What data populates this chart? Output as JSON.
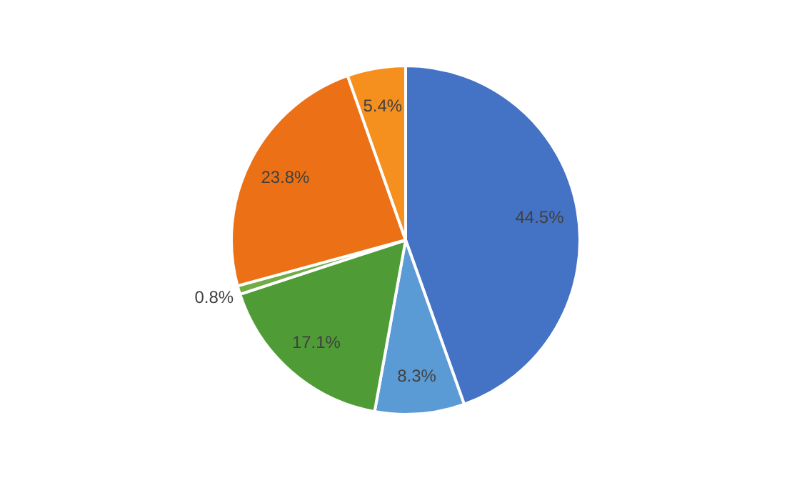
{
  "chart_data": {
    "type": "pie",
    "categories": [
      null,
      null,
      null,
      null,
      null,
      null
    ],
    "values": [
      44.5,
      8.3,
      17.1,
      0.8,
      23.8,
      5.4
    ],
    "colors": [
      "#4472c4",
      "#5b9bd5",
      "#4f9c37",
      "#70ad47",
      "#ec7116",
      "#f5901e"
    ],
    "value_labels": [
      "44.5%",
      "8.3%",
      "17.1%",
      "0.8%",
      "23.8%",
      "5.4%"
    ]
  }
}
